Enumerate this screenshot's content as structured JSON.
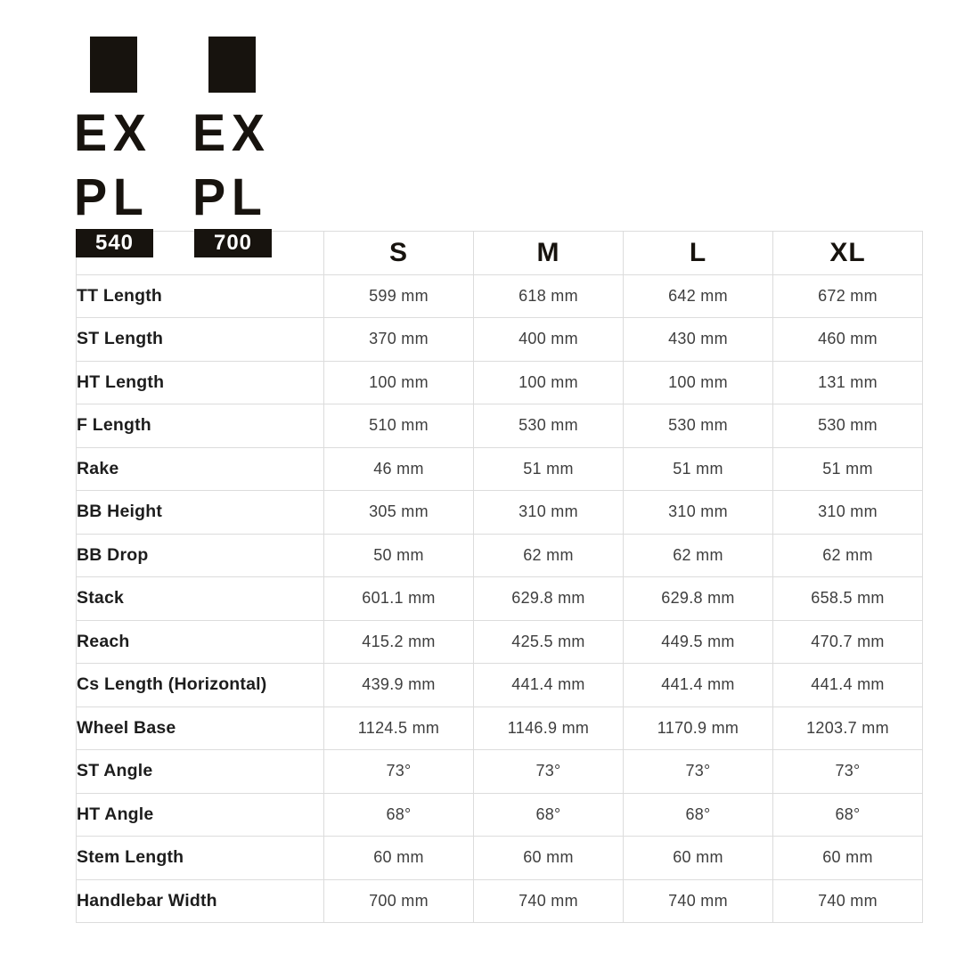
{
  "logos": [
    {
      "id": "expl-540",
      "word_top": "EX",
      "word_bottom": "PL",
      "badge": "540"
    },
    {
      "id": "expl-700",
      "word_top": "EX",
      "word_bottom": "PL",
      "badge": "700"
    }
  ],
  "chart_data": {
    "type": "table",
    "title": "",
    "corner_label": "",
    "columns": [
      "S",
      "M",
      "L",
      "XL"
    ],
    "rows": [
      {
        "label": "TT Length",
        "values": [
          "599 mm",
          "618 mm",
          "642 mm",
          "672 mm"
        ]
      },
      {
        "label": "ST Length",
        "values": [
          "370 mm",
          "400 mm",
          "430 mm",
          "460 mm"
        ]
      },
      {
        "label": "HT Length",
        "values": [
          "100 mm",
          "100 mm",
          "100 mm",
          "131 mm"
        ]
      },
      {
        "label": "F Length",
        "values": [
          "510 mm",
          "530 mm",
          "530 mm",
          "530 mm"
        ]
      },
      {
        "label": "Rake",
        "values": [
          "46 mm",
          "51 mm",
          "51 mm",
          "51 mm"
        ]
      },
      {
        "label": "BB Height",
        "values": [
          "305 mm",
          "310 mm",
          "310 mm",
          "310 mm"
        ]
      },
      {
        "label": "BB Drop",
        "values": [
          "50 mm",
          "62 mm",
          "62 mm",
          "62 mm"
        ]
      },
      {
        "label": "Stack",
        "values": [
          "601.1 mm",
          "629.8 mm",
          "629.8 mm",
          "658.5 mm"
        ]
      },
      {
        "label": "Reach",
        "values": [
          "415.2 mm",
          "425.5 mm",
          "449.5 mm",
          "470.7 mm"
        ]
      },
      {
        "label": "Cs Length (Horizontal)",
        "values": [
          "439.9 mm",
          "441.4 mm",
          "441.4 mm",
          "441.4 mm"
        ]
      },
      {
        "label": "Wheel Base",
        "values": [
          "1124.5 mm",
          "1146.9 mm",
          "1170.9 mm",
          "1203.7 mm"
        ]
      },
      {
        "label": "ST Angle",
        "values": [
          "73°",
          "73°",
          "73°",
          "73°"
        ]
      },
      {
        "label": "HT Angle",
        "values": [
          "68°",
          "68°",
          "68°",
          "68°"
        ]
      },
      {
        "label": "Stem Length",
        "values": [
          "60 mm",
          "60 mm",
          "60 mm",
          "60 mm"
        ]
      },
      {
        "label": "Handlebar Width",
        "values": [
          "700 mm",
          "740 mm",
          "740 mm",
          "740 mm"
        ]
      }
    ]
  },
  "colors": {
    "brand_black": "#17130e",
    "grid_line": "#dcdcdc",
    "label_text": "#1d1d1d",
    "value_text": "#3e3e3e",
    "badge_text": "#ffffff",
    "page_background": "#ffffff"
  }
}
